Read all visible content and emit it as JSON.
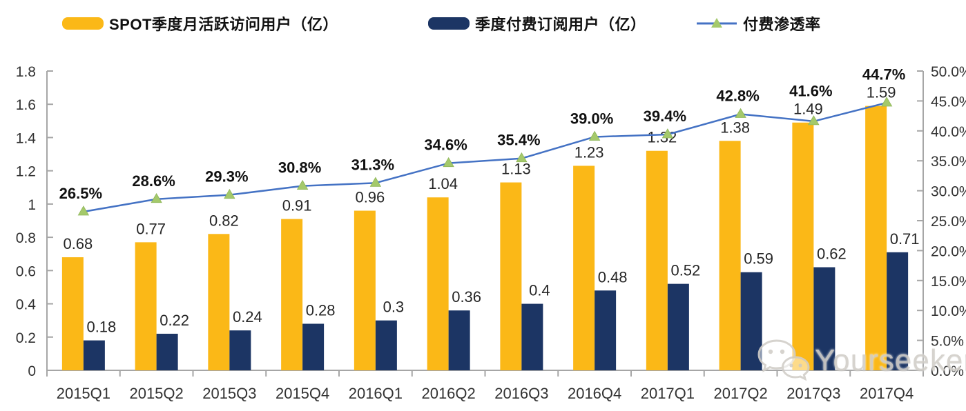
{
  "legend": {
    "items": [
      {
        "id": "mau",
        "label": "SPOT季度月活跃访问用户（亿）",
        "marker": "bar-swatch"
      },
      {
        "id": "paid",
        "label": "季度付费订阅用户（亿）",
        "marker": "bar-swatch"
      },
      {
        "id": "rate",
        "label": "付费渗透率",
        "marker": "line-triangle"
      }
    ]
  },
  "colors": {
    "mau_bar": "#FBB817",
    "paid_bar": "#1C3564",
    "line": "#4472C4",
    "marker": "#A4C96B",
    "axis": "#A6A6A6",
    "text": "#262626",
    "pct_text": "#111111"
  },
  "watermark": {
    "text": "Yourseeker",
    "icon": "wechat-icon"
  },
  "chart_data": {
    "type": "bar",
    "subtype": "combo-dual-axis-bar-line",
    "title": "",
    "xlabel": "",
    "ylabel_left": "",
    "ylabel_right": "",
    "grid": false,
    "legend_position": "top",
    "categories": [
      "2015Q1",
      "2015Q2",
      "2015Q3",
      "2015Q4",
      "2016Q1",
      "2016Q2",
      "2016Q3",
      "2016Q4",
      "2017Q1",
      "2017Q2",
      "2017Q3",
      "2017Q4"
    ],
    "series": [
      {
        "name": "SPOT季度月活跃访问用户（亿）",
        "type": "bar",
        "axis": "left",
        "values": [
          0.68,
          0.77,
          0.82,
          0.91,
          0.96,
          1.04,
          1.13,
          1.23,
          1.32,
          1.38,
          1.49,
          1.59
        ],
        "labels": [
          "0.68",
          "0.77",
          "0.82",
          "0.91",
          "0.96",
          "1.04",
          "1.13",
          "1.23",
          "1.32",
          "1.38",
          "1.49",
          "1.59"
        ]
      },
      {
        "name": "季度付费订阅用户（亿）",
        "type": "bar",
        "axis": "left",
        "values": [
          0.18,
          0.22,
          0.24,
          0.28,
          0.3,
          0.36,
          0.4,
          0.48,
          0.52,
          0.59,
          0.62,
          0.71
        ],
        "labels": [
          "0.18",
          "0.22",
          "0.24",
          "0.28",
          "0.3",
          "0.36",
          "0.4",
          "0.48",
          "0.52",
          "0.59",
          "0.62",
          "0.71"
        ]
      },
      {
        "name": "付费渗透率",
        "type": "line",
        "axis": "right",
        "values": [
          26.5,
          28.6,
          29.3,
          30.8,
          31.3,
          34.6,
          35.4,
          39.0,
          39.4,
          42.8,
          41.6,
          44.7
        ],
        "labels": [
          "26.5%",
          "28.6%",
          "29.3%",
          "30.8%",
          "31.3%",
          "34.6%",
          "35.4%",
          "39.0%",
          "39.4%",
          "42.8%",
          "41.6%",
          "44.7%"
        ]
      }
    ],
    "left_axis": {
      "min": 0,
      "max": 1.8,
      "step": 0.2,
      "ticks": [
        "0",
        "0.2",
        "0.4",
        "0.6",
        "0.8",
        "1",
        "1.2",
        "1.4",
        "1.6",
        "1.8"
      ]
    },
    "right_axis": {
      "min": 0,
      "max": 50,
      "step": 5,
      "ticks": [
        "0.0%",
        "5.0%",
        "10.0%",
        "15.0%",
        "20.0%",
        "25.0%",
        "30.0%",
        "35.0%",
        "40.0%",
        "45.0%",
        "50.0%"
      ]
    }
  }
}
